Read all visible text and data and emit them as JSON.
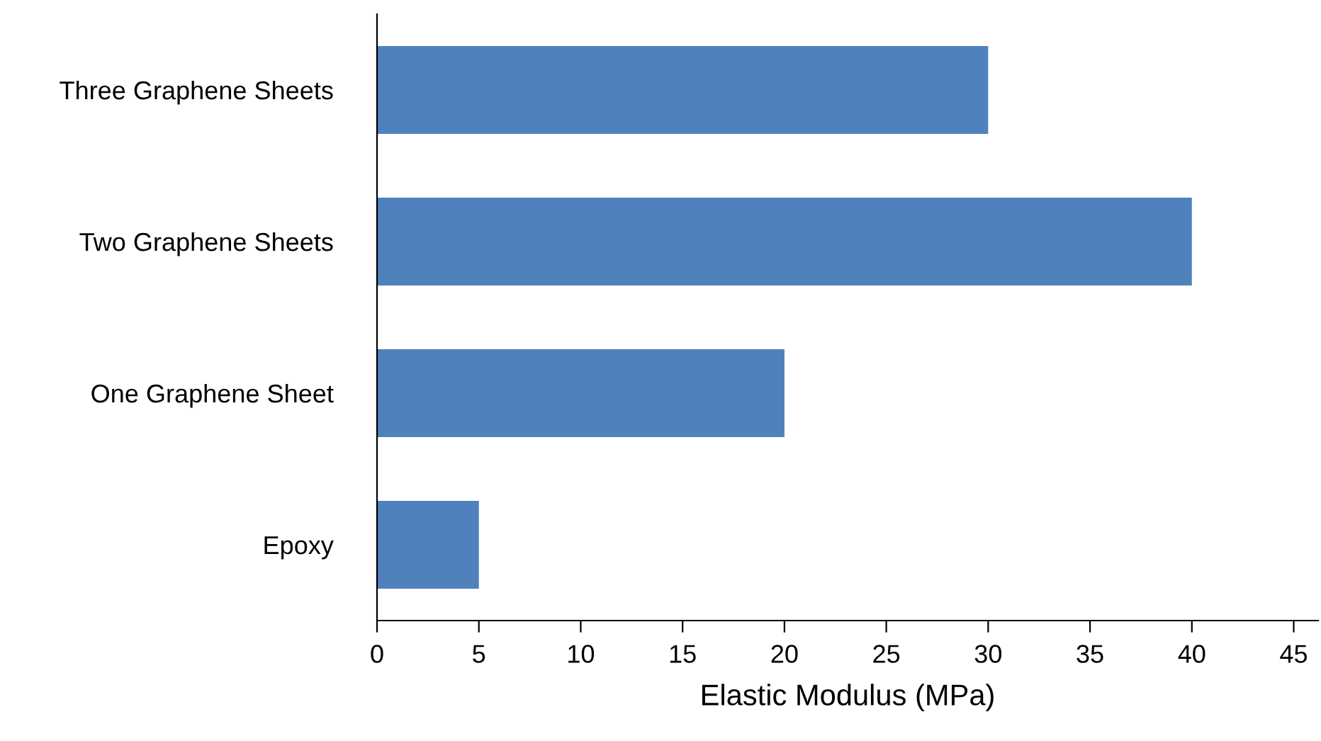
{
  "chart_data": {
    "type": "bar",
    "orientation": "horizontal",
    "xlabel": "Elastic Modulus (MPa)",
    "categories": [
      "Three Graphene Sheets",
      "Two Graphene Sheets",
      "One Graphene Sheet",
      "Epoxy"
    ],
    "values": [
      30,
      40,
      20,
      5
    ],
    "color": "#4f81bd",
    "xlim": [
      0,
      46.2
    ],
    "xticks": [
      0,
      5,
      10,
      15,
      20,
      25,
      30,
      35,
      40,
      45
    ],
    "grid": false,
    "legend": false
  }
}
